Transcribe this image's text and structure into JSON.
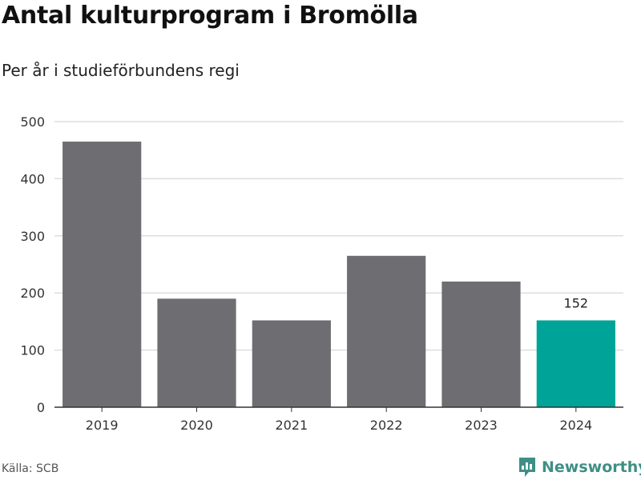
{
  "header": {
    "title": "Antal kulturprogram i Bromölla",
    "subtitle": "Per år i studieförbundens regi"
  },
  "footer": {
    "source": "Källa: SCB",
    "brand": "Newsworthy"
  },
  "colors": {
    "bar": "#6e6d72",
    "highlight": "#00a398",
    "grid": "#dddddd",
    "axis": "#333333",
    "brand": "#3f8f86"
  },
  "chart_data": {
    "type": "bar",
    "categories": [
      "2019",
      "2020",
      "2021",
      "2022",
      "2023",
      "2024"
    ],
    "values": [
      465,
      190,
      152,
      265,
      220,
      152
    ],
    "highlight_index": 5,
    "data_labels": [
      {
        "index": 5,
        "text": "152"
      }
    ],
    "ylim": [
      0,
      500
    ],
    "yticks": [
      0,
      100,
      200,
      300,
      400,
      500
    ],
    "grid": true,
    "xlabel": "",
    "ylabel": ""
  }
}
